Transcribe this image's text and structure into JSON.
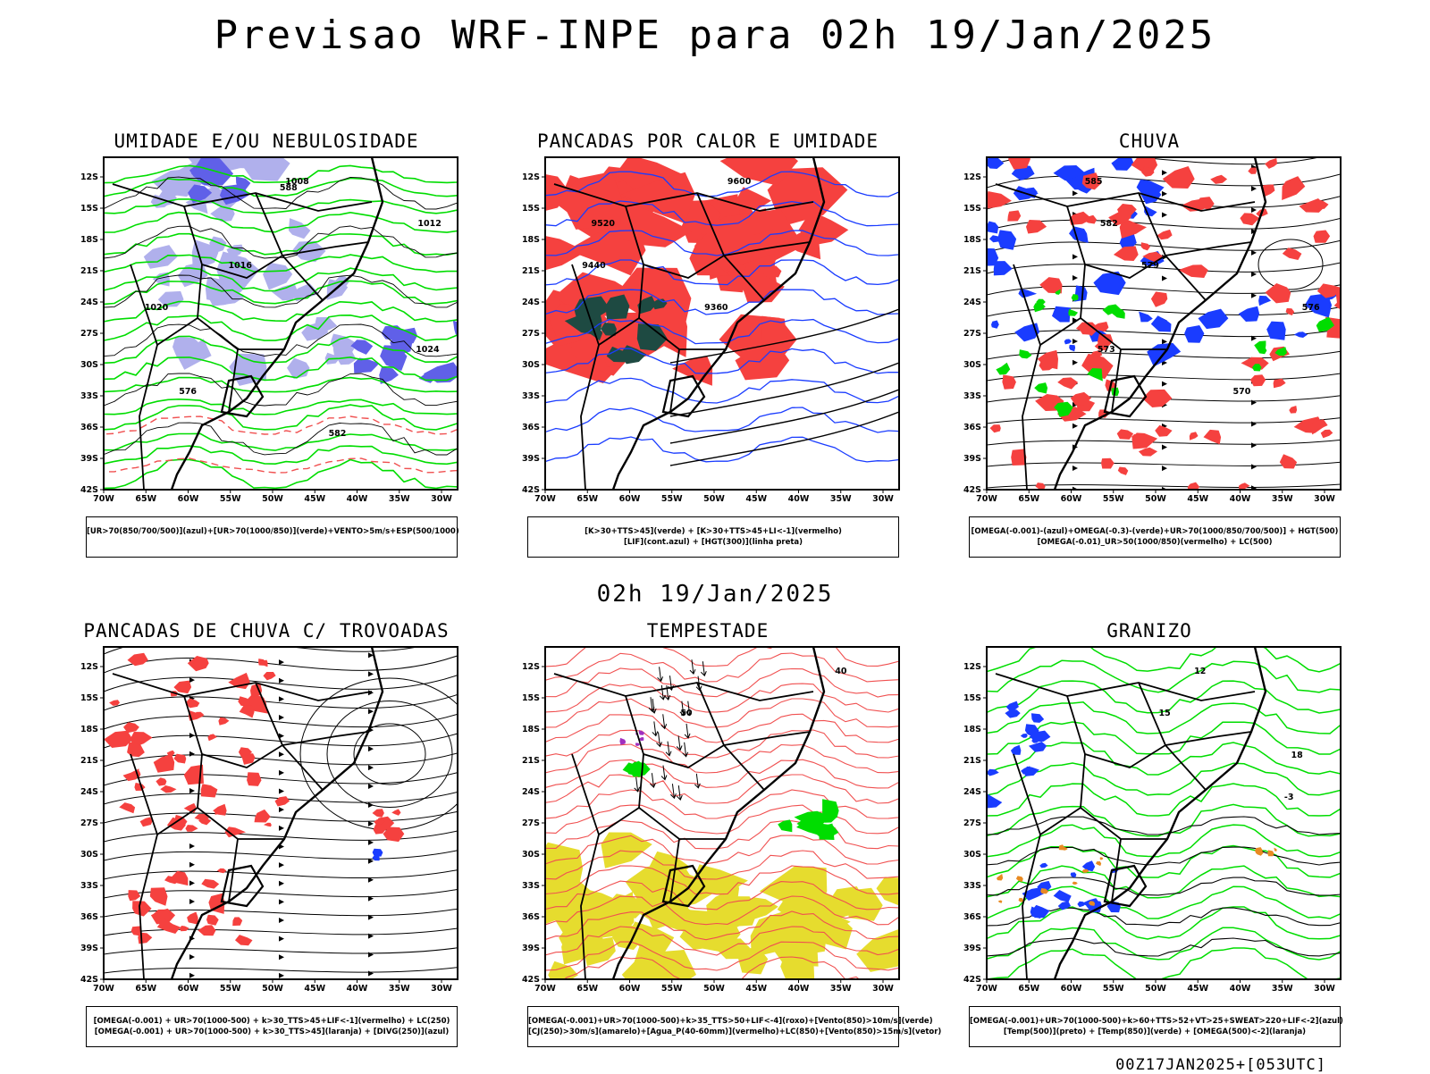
{
  "main_title": "Previsao WRF-INPE  para 02h 19/Jan/2025",
  "mid_title": "02h 19/Jan/2025",
  "footer_stamp": "00Z17JAN2025+[053UTC]",
  "axes": {
    "lat_labels": [
      "12S",
      "15S",
      "18S",
      "21S",
      "24S",
      "27S",
      "30S",
      "33S",
      "36S",
      "39S",
      "42S"
    ],
    "lon_labels": [
      "70W",
      "65W",
      "60W",
      "55W",
      "50W",
      "45W",
      "40W",
      "35W",
      "30W"
    ]
  },
  "colors": {
    "red": "#f5413f",
    "green": "#00dd00",
    "blue": "#1a3cff",
    "lavender": "#b0b0ec",
    "purple": "#6060e8",
    "dark_teal": "#1e4a42",
    "yellow": "#e6dc2e",
    "orange": "#e88a22",
    "contour_red": "#f05050",
    "black": "#000000"
  },
  "panels": [
    {
      "title": "UMIDADE E/OU NEBULOSIDADE",
      "legend": [
        "[UR>70(850/700/500)](azul)+[UR>70(1000/850)](verde)+VENTO>5m/s+ESP(500/1000)"
      ],
      "labels": [
        "1008",
        "1012",
        "1016",
        "1020",
        "1024",
        "576",
        "582",
        "588"
      ]
    },
    {
      "title": "PANCADAS POR CALOR E UMIDADE",
      "legend": [
        "[K>30+TTS>45](verde) + [K>30+TTS>45+LI<-1](vermelho)",
        "[LIF](cont.azul) + [HGT(300)](linha preta)"
      ],
      "labels": [
        "9600",
        "9520",
        "9440",
        "9360"
      ]
    },
    {
      "title": "CHUVA",
      "legend": [
        "[OMEGA(-0.001)-(azul)+OMEGA(-0.3)-(verde)+UR>70(1000/850/700/500)] + HGT(500)",
        "[OMEGA(-0.01)_UR>50(1000/850)(vermelho) + LC(500)"
      ],
      "labels": [
        "585",
        "582",
        "579",
        "576",
        "573",
        "570"
      ]
    },
    {
      "title": "PANCADAS DE CHUVA C/ TROVOADAS",
      "legend": [
        "[OMEGA(-0.001) + UR>70(1000-500) + k>30_TTS>45+LIF<-1](vermelho) + LC(250)",
        "[OMEGA(-0.001) + UR>70(1000-500) + k>30_TTS>45](laranja) + [DIVG(250)](azul)"
      ],
      "labels": []
    },
    {
      "title": "TEMPESTADE",
      "legend": [
        "[OMEGA(-0.001)+UR>70(1000-500)+k>35_TTS>50+LIF<-4](roxo)+[Vento(850)>10m/s](verde)",
        "[CJ(250)>30m/s](amarelo)+[Agua_P(40-60mm)](vermelho)+LC(850)+[Vento(850)>15m/s](vetor)"
      ],
      "labels": [
        "40",
        "50"
      ]
    },
    {
      "title": "GRANIZO",
      "legend": [
        "[OMEGA(-0.001)+UR>70(1000-500)+k>60+TTS>52+VT>25+SWEAT>220+LIF<-2](azul)",
        "[Temp(500)](preto) + [Temp(850)](verde) + [OMEGA(500)<-2](laranja)"
      ],
      "labels": [
        "12",
        "15",
        "18",
        "-3"
      ]
    }
  ]
}
